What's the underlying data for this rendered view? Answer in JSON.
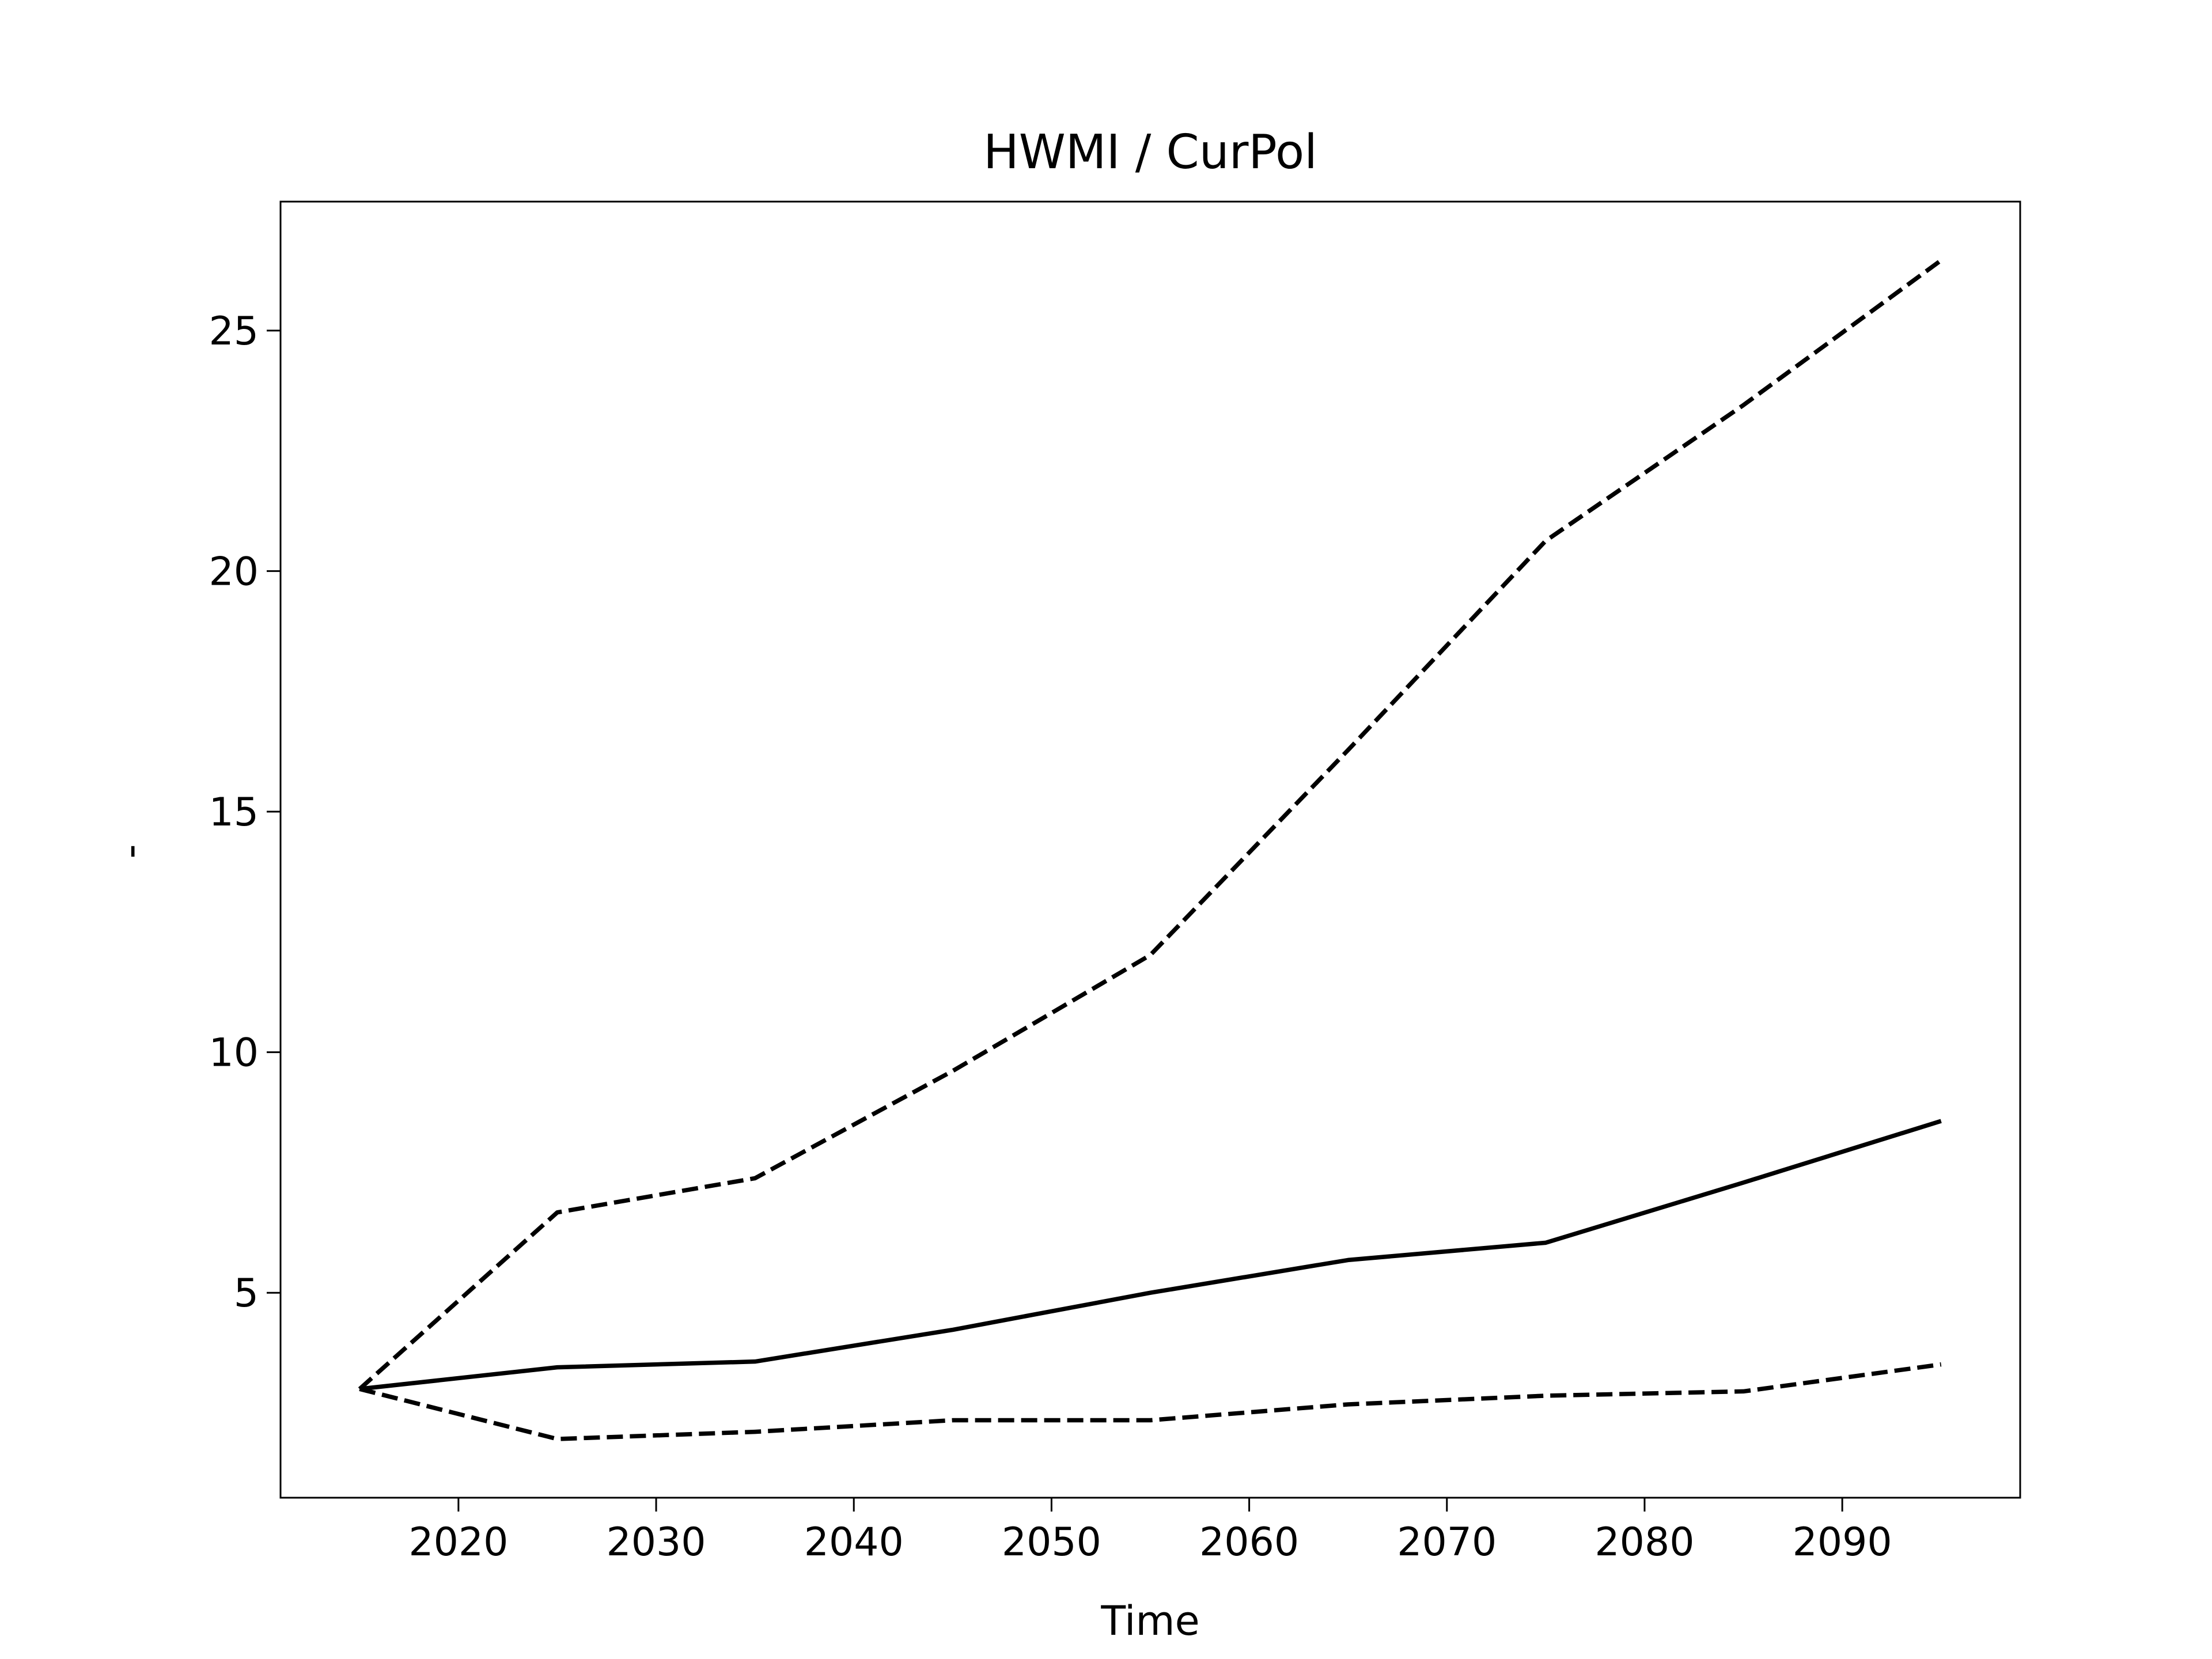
{
  "chart_data": {
    "type": "line",
    "title": "HWMI / CurPol",
    "x_label": "Time",
    "y_label": "-",
    "x": [
      2015,
      2025,
      2035,
      2045,
      2055,
      2065,
      2075,
      2085,
      2095
    ],
    "series": [
      {
        "color": "#000000",
        "linestyle": "solid",
        "values": [
          3.0,
          3.45,
          3.57,
          4.23,
          5.0,
          5.68,
          6.04,
          7.29,
          8.57
        ]
      },
      {
        "color": "#000000",
        "linestyle": "dashed",
        "values": [
          3.0,
          6.67,
          7.38,
          9.61,
          12.02,
          16.28,
          20.63,
          23.45,
          26.46
        ]
      },
      {
        "color": "#000000",
        "linestyle": "dashed",
        "values": [
          3.0,
          1.96,
          2.11,
          2.35,
          2.35,
          2.68,
          2.86,
          2.95,
          3.51
        ]
      }
    ],
    "xlim": [
      2011,
      2099
    ],
    "ylim": [
      0.74,
      27.68
    ],
    "xticks": [
      2020,
      2030,
      2040,
      2050,
      2060,
      2070,
      2080,
      2090
    ],
    "yticks": [
      5,
      10,
      15,
      20,
      25
    ],
    "grid": false
  }
}
